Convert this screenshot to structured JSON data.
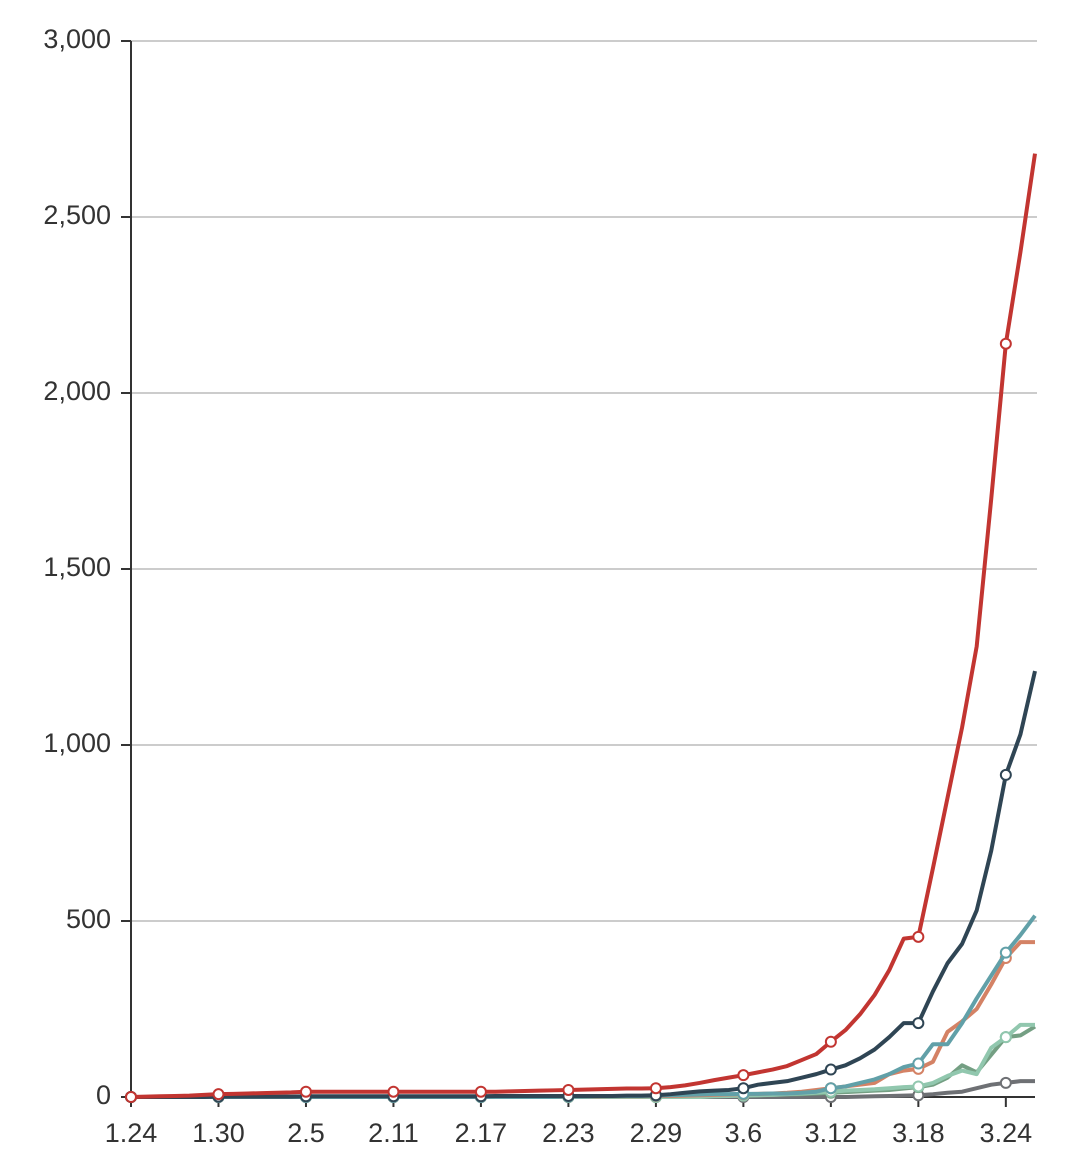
{
  "chart_data": {
    "type": "line",
    "categories": [
      "1.24",
      null,
      null,
      null,
      null,
      null,
      "1.30",
      null,
      null,
      null,
      null,
      null,
      "2.5",
      null,
      null,
      null,
      null,
      null,
      "2.11",
      null,
      null,
      null,
      null,
      null,
      "2.17",
      null,
      null,
      null,
      null,
      null,
      "2.23",
      null,
      null,
      null,
      null,
      null,
      "2.29",
      null,
      null,
      null,
      null,
      null,
      "3.6",
      null,
      null,
      null,
      null,
      null,
      "3.12",
      null,
      null,
      null,
      null,
      null,
      "3.18",
      null,
      null,
      null,
      null,
      null,
      "3.24",
      null,
      null
    ],
    "ylim": [
      0,
      3000
    ],
    "yticks": [
      0,
      500,
      {
        "value": 1000,
        "label": "1,000"
      },
      {
        "value": 1500,
        "label": "1,500"
      },
      {
        "value": 2000,
        "label": "2,000"
      },
      {
        "value": 2500,
        "label": "2,500"
      },
      {
        "value": 3000,
        "label": "3,000"
      }
    ],
    "grid": true,
    "series": [
      {
        "color": "#6e7074",
        "values": [
          0,
          0,
          0,
          0,
          0,
          0,
          0,
          0,
          0,
          0,
          0,
          0,
          0,
          0,
          0,
          0,
          0,
          0,
          0,
          0,
          0,
          0,
          0,
          0,
          0,
          0,
          0,
          0,
          0,
          0,
          0,
          0,
          0,
          0,
          0,
          0,
          0,
          0,
          0,
          0,
          0,
          0,
          0,
          0,
          0,
          0,
          0,
          0,
          0,
          0,
          1,
          2,
          3,
          4,
          5,
          8,
          12,
          15,
          25,
          35,
          40,
          45,
          45
        ]
      },
      {
        "color": "#749f83",
        "values": [
          0,
          0,
          0,
          0,
          0,
          0,
          0,
          0,
          0,
          0,
          0,
          0,
          0,
          0,
          0,
          0,
          0,
          0,
          0,
          0,
          0,
          0,
          0,
          0,
          0,
          0,
          0,
          0,
          0,
          0,
          0,
          0,
          0,
          0,
          0,
          0,
          0,
          0,
          0,
          0,
          2,
          3,
          4,
          5,
          6,
          7,
          8,
          10,
          12,
          14,
          16,
          18,
          20,
          24,
          28,
          35,
          55,
          90,
          70,
          120,
          170,
          175,
          200
        ]
      },
      {
        "color": "#91c7ae",
        "values": [
          0,
          0,
          0,
          0,
          0,
          0,
          0,
          0,
          0,
          0,
          0,
          0,
          0,
          0,
          0,
          0,
          0,
          0,
          0,
          0,
          0,
          0,
          0,
          0,
          0,
          0,
          0,
          0,
          0,
          0,
          0,
          0,
          0,
          0,
          0,
          0,
          0,
          0,
          0,
          0,
          2,
          3,
          4,
          5,
          6,
          8,
          10,
          12,
          15,
          18,
          20,
          22,
          25,
          28,
          30,
          40,
          60,
          75,
          65,
          140,
          170,
          205,
          205
        ]
      },
      {
        "color": "#d48265",
        "values": [
          0,
          0,
          0,
          0,
          0,
          0,
          0,
          0,
          0,
          0,
          0,
          0,
          0,
          0,
          0,
          0,
          0,
          0,
          0,
          0,
          0,
          0,
          0,
          0,
          0,
          0,
          0,
          0,
          0,
          0,
          1,
          1,
          1,
          2,
          2,
          2,
          3,
          3,
          4,
          5,
          6,
          7,
          8,
          9,
          10,
          12,
          15,
          20,
          25,
          30,
          35,
          40,
          65,
          75,
          80,
          100,
          185,
          215,
          250,
          320,
          395,
          440,
          440
        ]
      },
      {
        "color": "#61a0a8",
        "values": [
          0,
          0,
          0,
          0,
          0,
          0,
          0,
          0,
          0,
          0,
          0,
          0,
          0,
          0,
          0,
          0,
          0,
          0,
          0,
          0,
          0,
          0,
          0,
          0,
          0,
          0,
          0,
          0,
          0,
          0,
          1,
          1,
          2,
          2,
          3,
          3,
          4,
          5,
          6,
          7,
          8,
          8,
          9,
          9,
          10,
          10,
          12,
          15,
          25,
          30,
          40,
          50,
          65,
          85,
          95,
          150,
          150,
          210,
          280,
          345,
          410,
          460,
          515
        ]
      },
      {
        "color": "#2f4554",
        "values": [
          0,
          0,
          0,
          0,
          0,
          0,
          1,
          1,
          1,
          1,
          1,
          1,
          2,
          2,
          2,
          2,
          2,
          2,
          2,
          2,
          2,
          2,
          2,
          2,
          2,
          3,
          3,
          3,
          3,
          3,
          3,
          3,
          3,
          3,
          4,
          4,
          5,
          8,
          12,
          16,
          18,
          20,
          25,
          35,
          40,
          45,
          55,
          65,
          78,
          90,
          110,
          135,
          170,
          210,
          210,
          300,
          380,
          435,
          530,
          700,
          915,
          1030,
          1210
        ]
      },
      {
        "color": "#c23531",
        "values": [
          0,
          1,
          2,
          3,
          4,
          6,
          8,
          9,
          10,
          11,
          12,
          13,
          15,
          15,
          15,
          15,
          15,
          15,
          15,
          15,
          15,
          15,
          15,
          15,
          15,
          15,
          16,
          17,
          18,
          19,
          20,
          21,
          22,
          23,
          24,
          24,
          25,
          28,
          33,
          40,
          48,
          55,
          62,
          70,
          78,
          88,
          105,
          122,
          157,
          190,
          235,
          290,
          360,
          450,
          455,
          650,
          850,
          1050,
          1280,
          1700,
          2140,
          2400,
          2680
        ]
      }
    ]
  }
}
